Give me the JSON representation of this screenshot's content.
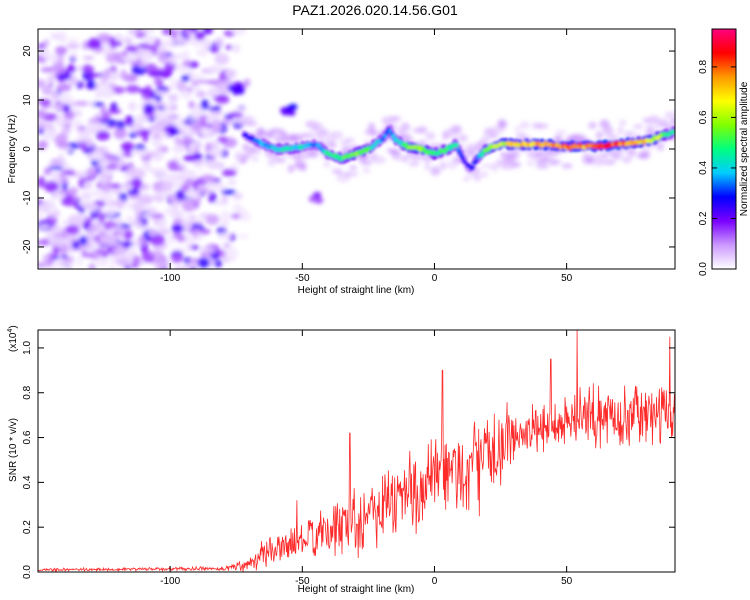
{
  "title": "PAZ1.2026.020.14.56.G01",
  "chart_data": [
    {
      "type": "heatmap",
      "name": "spectrogram",
      "xlabel": "Height of straight line (km)",
      "ylabel": "Frequency (Hz)",
      "xlim": [
        -150,
        91
      ],
      "ylim": [
        -24.5,
        24.5
      ],
      "xticks": [
        -100,
        -50,
        0,
        50
      ],
      "yticks": [
        -20,
        -10,
        0,
        10,
        20
      ],
      "colorbar": {
        "label": "Normalized spectral amplitude",
        "range": [
          0,
          0.95
        ],
        "ticks": [
          0.0,
          0.2,
          0.4,
          0.6,
          0.8
        ],
        "colormap": [
          "#ffffff",
          "#cc99ff",
          "#7a00ff",
          "#0000ff",
          "#00ccff",
          "#00ff80",
          "#80ff00",
          "#ffff00",
          "#ff9900",
          "#ff0000",
          "#ff0080"
        ]
      },
      "noise_region_x": [
        -150,
        -72
      ],
      "ridge": {
        "x": [
          -72,
          -65,
          -60,
          -55,
          -50,
          -45,
          -40,
          -35,
          -30,
          -25,
          -20,
          -17,
          -15,
          -12,
          -10,
          -5,
          0,
          5,
          8,
          10,
          12,
          14,
          16,
          18,
          20,
          25,
          30,
          40,
          50,
          60,
          70,
          80,
          85,
          88,
          91
        ],
        "freq": [
          3,
          1,
          0,
          0,
          0.5,
          1,
          -1,
          -2,
          -1,
          0,
          2,
          4,
          2,
          1,
          0.5,
          0,
          -1,
          0,
          1,
          -1,
          -3,
          -4,
          -2,
          -1,
          0,
          1,
          1,
          1,
          0.5,
          0.5,
          1,
          1.5,
          2.5,
          3,
          3.5
        ],
        "amplitude": [
          0.25,
          0.4,
          0.45,
          0.5,
          0.45,
          0.35,
          0.5,
          0.55,
          0.6,
          0.55,
          0.4,
          0.35,
          0.45,
          0.5,
          0.6,
          0.65,
          0.55,
          0.55,
          0.5,
          0.35,
          0.25,
          0.3,
          0.35,
          0.5,
          0.6,
          0.7,
          0.75,
          0.85,
          0.85,
          0.85,
          0.9,
          0.75,
          0.65,
          0.55,
          0.45
        ]
      },
      "secondary_features": [
        {
          "x": -75,
          "freq": 12,
          "amplitude": 0.25
        },
        {
          "x": -55,
          "freq": 8,
          "amplitude": 0.3
        },
        {
          "x": -45,
          "freq": -10,
          "amplitude": 0.2
        }
      ]
    },
    {
      "type": "line",
      "name": "snr",
      "xlabel": "Height of straight line (km)",
      "ylabel": "SNR (10 * v/v)",
      "scale_label": "(x10",
      "scale_exp": "4",
      "scale_close": ")",
      "xlim": [
        -150,
        91
      ],
      "ylim": [
        0,
        1.08
      ],
      "xticks": [
        -100,
        -50,
        0,
        50
      ],
      "yticks": [
        0.0,
        0.2,
        0.4,
        0.6,
        0.8,
        1.0
      ],
      "line_color": "#ff2a2a",
      "envelope": {
        "x": [
          -150,
          -80,
          -72,
          -65,
          -60,
          -55,
          -50,
          -45,
          -40,
          -35,
          -30,
          -25,
          -20,
          -15,
          -10,
          -5,
          0,
          5,
          10,
          15,
          20,
          25,
          30,
          40,
          50,
          60,
          70,
          80,
          90
        ],
        "mean": [
          0.01,
          0.015,
          0.03,
          0.08,
          0.1,
          0.12,
          0.14,
          0.16,
          0.17,
          0.22,
          0.24,
          0.27,
          0.3,
          0.33,
          0.35,
          0.37,
          0.4,
          0.43,
          0.45,
          0.47,
          0.52,
          0.57,
          0.6,
          0.64,
          0.68,
          0.69,
          0.7,
          0.7,
          0.7
        ],
        "spread": [
          0.006,
          0.008,
          0.03,
          0.06,
          0.06,
          0.06,
          0.08,
          0.09,
          0.1,
          0.14,
          0.15,
          0.16,
          0.17,
          0.18,
          0.18,
          0.19,
          0.2,
          0.2,
          0.2,
          0.2,
          0.18,
          0.15,
          0.12,
          0.11,
          0.12,
          0.13,
          0.12,
          0.12,
          0.12
        ]
      },
      "peaks": [
        {
          "x": -52,
          "y": 0.32
        },
        {
          "x": -32,
          "y": 0.62
        },
        {
          "x": 3,
          "y": 0.9
        },
        {
          "x": 44,
          "y": 0.95
        },
        {
          "x": 54,
          "y": 1.08
        },
        {
          "x": 89,
          "y": 1.05
        }
      ]
    }
  ]
}
